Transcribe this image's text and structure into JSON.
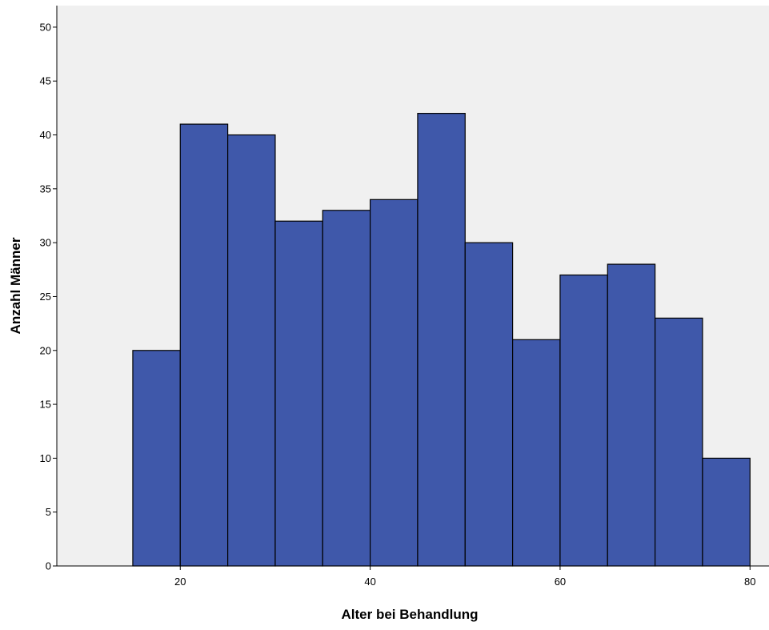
{
  "chart_data": {
    "type": "bar",
    "subtype": "histogram",
    "title": "",
    "xlabel": "Alter bei Behandlung",
    "ylabel": "Anzahl Männer",
    "xlim": [
      7,
      82
    ],
    "ylim": [
      0,
      52
    ],
    "xticks": [
      20,
      40,
      60,
      80
    ],
    "yticks": [
      0,
      5,
      10,
      15,
      20,
      25,
      30,
      35,
      40,
      45,
      50
    ],
    "bins": [
      {
        "start": 15,
        "end": 20,
        "value": 20
      },
      {
        "start": 20,
        "end": 25,
        "value": 41
      },
      {
        "start": 25,
        "end": 30,
        "value": 40
      },
      {
        "start": 30,
        "end": 35,
        "value": 32
      },
      {
        "start": 35,
        "end": 40,
        "value": 33
      },
      {
        "start": 40,
        "end": 45,
        "value": 34
      },
      {
        "start": 45,
        "end": 50,
        "value": 42
      },
      {
        "start": 50,
        "end": 55,
        "value": 30
      },
      {
        "start": 55,
        "end": 60,
        "value": 21
      },
      {
        "start": 60,
        "end": 65,
        "value": 27
      },
      {
        "start": 65,
        "end": 70,
        "value": 28
      },
      {
        "start": 70,
        "end": 75,
        "value": 23
      },
      {
        "start": 75,
        "end": 80,
        "value": 10
      }
    ],
    "grid": false,
    "legend": "none",
    "colors": {
      "bar_fill": "#3f58aa",
      "bar_stroke": "#000000",
      "plot_background": "#f0f0f0",
      "axis": "#000000"
    }
  }
}
